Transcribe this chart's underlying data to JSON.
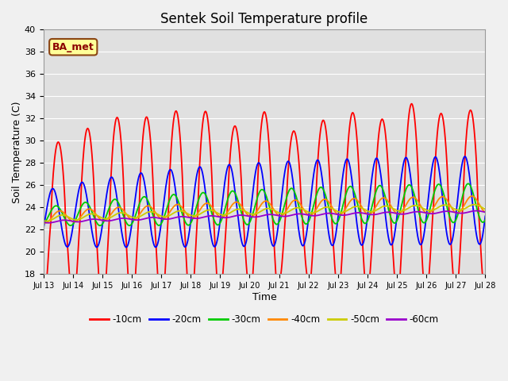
{
  "title": "Sentek Soil Temperature profile",
  "xlabel": "Time",
  "ylabel": "Soil Temperature (C)",
  "ylim": [
    18,
    40
  ],
  "n_days": 15,
  "annotation": "BA_met",
  "legend_labels": [
    "-10cm",
    "-20cm",
    "-30cm",
    "-40cm",
    "-50cm",
    "-60cm"
  ],
  "line_colors": [
    "#ff0000",
    "#0000ff",
    "#00cc00",
    "#ff8800",
    "#cccc00",
    "#9900cc"
  ],
  "tick_labels": [
    "Jul 13",
    "Jul 14",
    "Jul 15",
    "Jul 16",
    "Jul 17",
    "Jul 18",
    "Jul 19",
    "Jul 20",
    "Jul 21",
    "Jul 22",
    "Jul 23",
    "Jul 24",
    "Jul 25",
    "Jul 26",
    "Jul 27",
    "Jul 28"
  ],
  "fig_facecolor": "#f0f0f0",
  "ax_facecolor": "#e0e0e0",
  "grid_color": "#ffffff",
  "annotation_facecolor": "#ffff99",
  "annotation_edgecolor": "#8B4513",
  "annotation_textcolor": "#8B0000",
  "spine_color": "#999999"
}
